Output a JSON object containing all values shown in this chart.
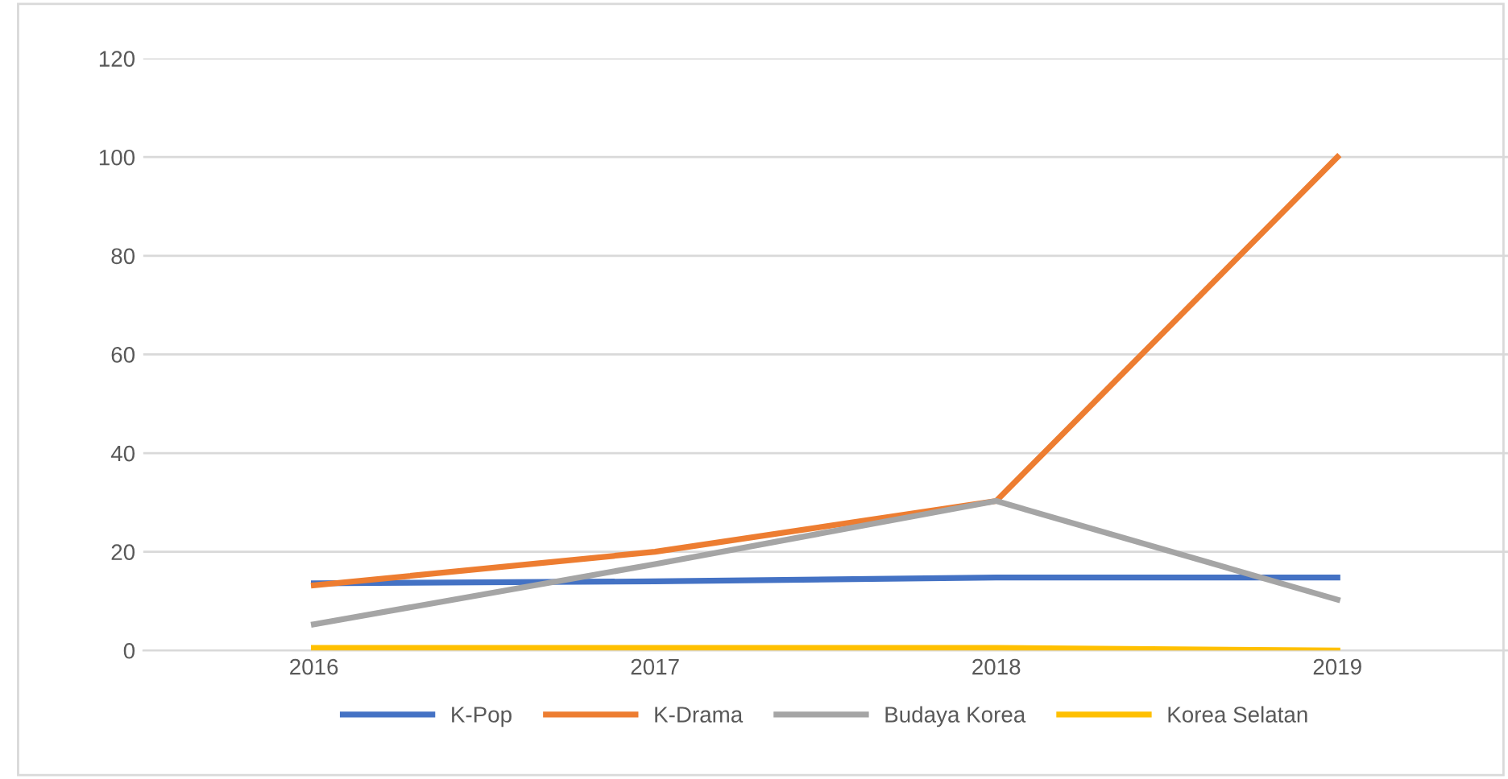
{
  "chart_data": {
    "type": "line",
    "categories": [
      "2016",
      "2017",
      "2018",
      "2019"
    ],
    "series": [
      {
        "name": "K-Pop",
        "color": "#4472c4",
        "values": [
          13.6,
          14,
          14.8,
          14.8
        ]
      },
      {
        "name": "K-Drama",
        "color": "#ed7d31",
        "values": [
          13.2,
          20,
          30.3,
          100
        ]
      },
      {
        "name": "Budaya Korea",
        "color": "#a5a5a5",
        "values": [
          5.3,
          17.5,
          30.3,
          10.3
        ]
      },
      {
        "name": "Korea Selatan",
        "color": "#ffc000",
        "values": [
          0.5,
          0.5,
          0.5,
          0
        ]
      }
    ],
    "ylim": [
      0,
      120
    ],
    "yticks": [
      0,
      20,
      40,
      60,
      80,
      100,
      120
    ],
    "grid": "y",
    "legend": "bottom",
    "marker": "none",
    "line_style": "solid"
  }
}
